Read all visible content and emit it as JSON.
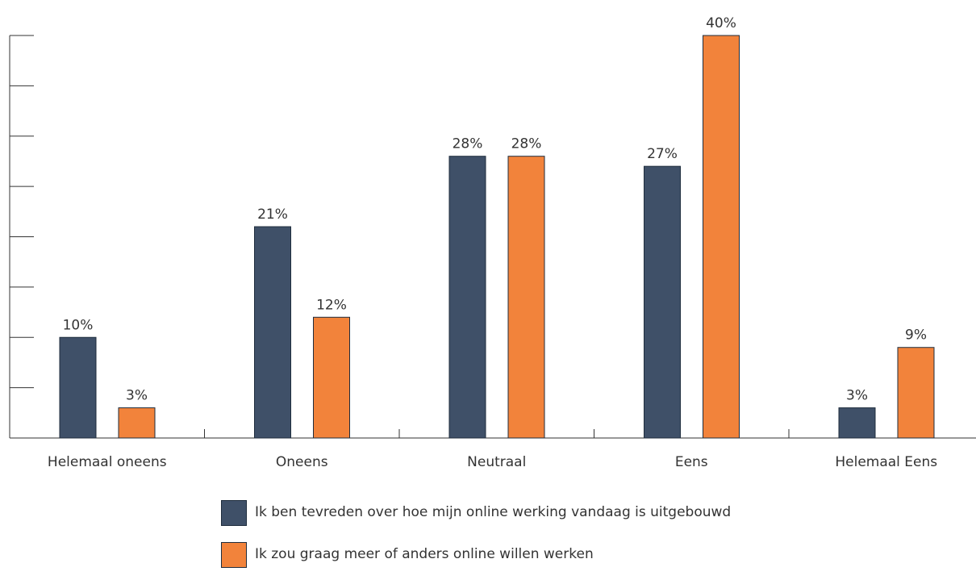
{
  "chart_data": {
    "type": "bar",
    "categories": [
      "Helemaal oneens",
      "Oneens",
      "Neutraal",
      "Eens",
      "Helemaal Eens"
    ],
    "series": [
      {
        "name": "Ik ben tevreden over hoe mijn online werking vandaag is uitgebouwd",
        "values": [
          10,
          21,
          28,
          27,
          3
        ],
        "labels": [
          "10%",
          "21%",
          "28%",
          "27%",
          "3%"
        ],
        "color": "#3f5068"
      },
      {
        "name": "Ik zou graag meer of anders online willen werken",
        "values": [
          3,
          12,
          28,
          40,
          9
        ],
        "labels": [
          "3%",
          "12%",
          "28%",
          "40%",
          "9%"
        ],
        "color": "#f2833b"
      }
    ],
    "ylim": [
      0,
      40
    ],
    "y_ticks": [
      0,
      5,
      10,
      15,
      20,
      25,
      30,
      35,
      40
    ],
    "unit": "%",
    "grid": false,
    "legend_position": "bottom"
  }
}
